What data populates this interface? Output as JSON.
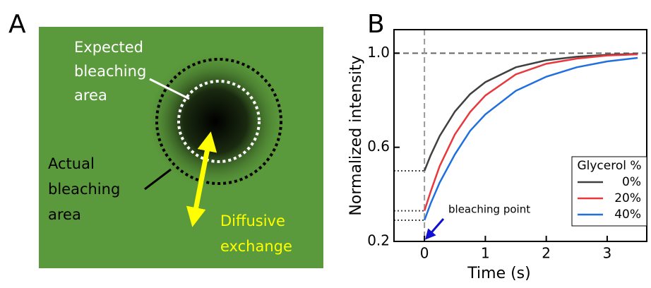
{
  "panel_a": {
    "label": "A",
    "expected_label": [
      "Expected",
      "bleaching",
      "area"
    ],
    "actual_label": [
      "Actual",
      "bleaching",
      "area"
    ],
    "diffusive_label": [
      "Diffusive",
      "exchange"
    ]
  },
  "chart_data": {
    "type": "line",
    "panel_label": "B",
    "x_label": "Time (s)",
    "y_label": "Normalized intensity",
    "x": [
      0,
      0.1,
      0.25,
      0.5,
      0.75,
      1,
      1.5,
      2,
      2.5,
      3,
      3.5
    ],
    "series": [
      {
        "name": "0%",
        "color": "#404040",
        "values": [
          0.5,
          0.565,
          0.648,
          0.752,
          0.826,
          0.877,
          0.94,
          0.97,
          0.985,
          0.993,
          0.997
        ]
      },
      {
        "name": "20%",
        "color": "#e8383d",
        "values": [
          0.33,
          0.41,
          0.52,
          0.655,
          0.75,
          0.82,
          0.91,
          0.955,
          0.977,
          0.99,
          0.995
        ]
      },
      {
        "name": "40%",
        "color": "#1f6fe0",
        "values": [
          0.29,
          0.36,
          0.45,
          0.57,
          0.67,
          0.74,
          0.84,
          0.9,
          0.94,
          0.965,
          0.98
        ]
      }
    ],
    "legend_title": "Glycerol %",
    "legend": "lower right",
    "xlim": [
      -0.5,
      3.65
    ],
    "ylim": [
      0.2,
      1.1
    ],
    "xticks": [
      0,
      1,
      2,
      3
    ],
    "yticks": [
      0.2,
      0.6,
      {
        "value": 1,
        "label": "1.0"
      }
    ],
    "hlines": [
      1
    ],
    "vlines": [
      0
    ],
    "annotation": "bleaching point"
  }
}
